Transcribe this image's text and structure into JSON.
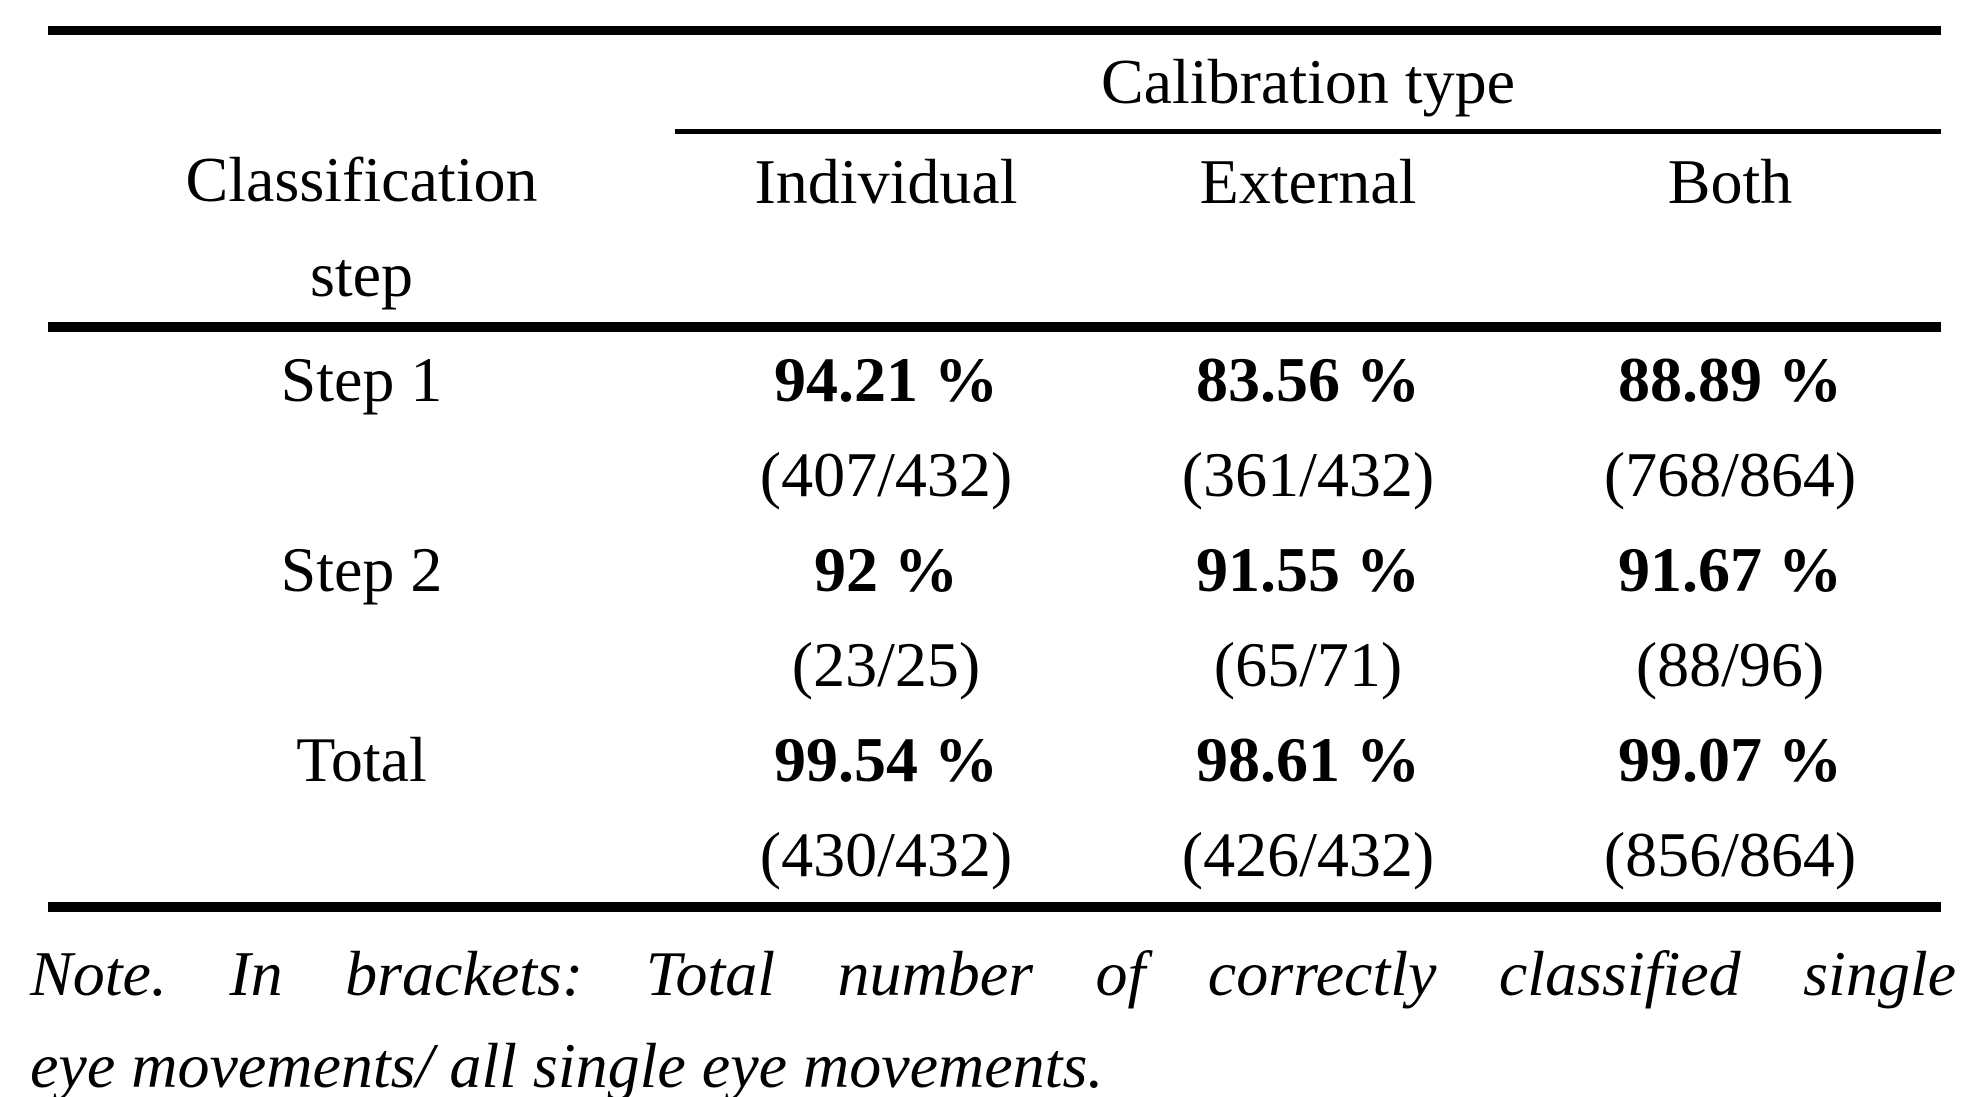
{
  "colors": {
    "background": "#ffffff",
    "text": "#000000",
    "rule": "#000000"
  },
  "table": {
    "spanner": "Calibration type",
    "row_header": {
      "line1": "Classification",
      "line2": "step"
    },
    "columns": [
      "Individual",
      "External",
      "Both"
    ],
    "rows": [
      {
        "label": "Step 1",
        "cells": [
          {
            "pct": "94.21 %",
            "frac": "(407/432)"
          },
          {
            "pct": "83.56 %",
            "frac": "(361/432)"
          },
          {
            "pct": "88.89 %",
            "frac": "(768/864)"
          }
        ]
      },
      {
        "label": "Step 2",
        "cells": [
          {
            "pct": "92 %",
            "frac": "(23/25)"
          },
          {
            "pct": "91.55 %",
            "frac": "(65/71)"
          },
          {
            "pct": "91.67 %",
            "frac": "(88/96)"
          }
        ]
      },
      {
        "label": "Total",
        "cells": [
          {
            "pct": "99.54 %",
            "frac": "(430/432)"
          },
          {
            "pct": "98.61 %",
            "frac": "(426/432)"
          },
          {
            "pct": "99.07 %",
            "frac": "(856/864)"
          }
        ]
      }
    ]
  },
  "note": {
    "line1": "Note. In brackets: Total number of correctly classified single",
    "line2": "eye movements/ all single eye movements."
  }
}
